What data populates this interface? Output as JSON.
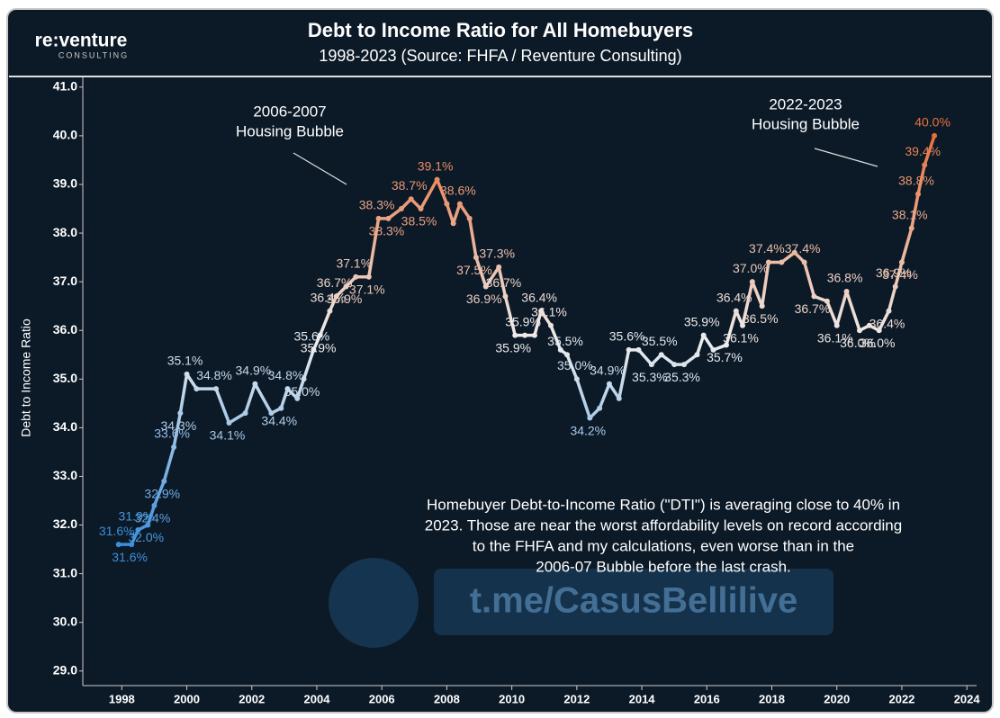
{
  "logo": {
    "name": "re:venture",
    "subtitle": "CONSULTING"
  },
  "watermark": "t.me/CasusBellilive",
  "chart_data": {
    "type": "line",
    "title": "Debt to Income Ratio for All Homebuyers",
    "subtitle": "1998-2023 (Source: FHFA / Reventure Consulting)",
    "y_label": "Debt to Income Ratio",
    "annotations": [
      {
        "lines": [
          "2006-2007",
          "Housing Bubble"
        ]
      },
      {
        "lines": [
          "2022-2023",
          "Housing Bubble"
        ]
      },
      {
        "lines": [
          "Homebuyer Debt-to-Income Ratio (\"DTI\") is averaging close to 40% in",
          "2023. Those are near the worst affordability levels on record according",
          "to the FHFA and my calculations, even worse than in the",
          "2006-07 Bubble before the last crash."
        ]
      }
    ],
    "colors": [
      "#3b8fdc",
      "#eeeeee",
      "#e8703a"
    ],
    "xlim": [
      1996.8,
      2024.3
    ],
    "xticks": [
      1998,
      2000,
      2002,
      2004,
      2006,
      2008,
      2010,
      2012,
      2014,
      2016,
      2018,
      2020,
      2022,
      2024
    ],
    "ylim": [
      28.7,
      41.2
    ],
    "yticks": [
      {
        "value": 29,
        "label": "29.0"
      },
      {
        "value": 30,
        "label": "30.0"
      },
      {
        "value": 31,
        "label": "31.0"
      },
      {
        "value": 32,
        "label": "32.0"
      },
      {
        "value": 33,
        "label": "33.0"
      },
      {
        "value": 34,
        "label": "34.0"
      },
      {
        "value": 35,
        "label": "35.0"
      },
      {
        "value": 36,
        "label": "36.0"
      },
      {
        "value": 37,
        "label": "37.0"
      },
      {
        "value": 38,
        "label": "38.0"
      },
      {
        "value": 39,
        "label": "39.0"
      },
      {
        "value": 40,
        "label": "40.0"
      },
      {
        "value": 41,
        "label": "41.0"
      }
    ],
    "x": [
      1997.9,
      1998.3,
      1998.5,
      1998.8,
      1999.0,
      1999.3,
      1999.6,
      1999.8,
      2000.0,
      2000.3,
      2000.9,
      2001.3,
      2001.8,
      2002.1,
      2002.6,
      2002.9,
      2003.1,
      2003.4,
      2003.6,
      2003.9,
      2004.1,
      2004.4,
      2004.6,
      2004.9,
      2005.2,
      2005.6,
      2005.9,
      2006.2,
      2006.6,
      2006.9,
      2007.2,
      2007.7,
      2008.0,
      2008.2,
      2008.4,
      2008.7,
      2008.9,
      2009.2,
      2009.6,
      2009.8,
      2010.1,
      2010.4,
      2010.7,
      2010.9,
      2011.2,
      2011.5,
      2011.7,
      2012.0,
      2012.4,
      2012.7,
      2013.0,
      2013.3,
      2013.6,
      2013.9,
      2014.3,
      2014.6,
      2015.0,
      2015.3,
      2015.7,
      2015.9,
      2016.2,
      2016.6,
      2016.9,
      2017.1,
      2017.4,
      2017.7,
      2017.9,
      2018.3,
      2018.7,
      2019.0,
      2019.3,
      2019.7,
      2020.0,
      2020.3,
      2020.7,
      2021.0,
      2021.3,
      2021.6,
      2021.8,
      2022.0,
      2022.3,
      2022.5,
      2022.7,
      2023.0
    ],
    "values": [
      31.6,
      31.6,
      31.9,
      32.0,
      32.4,
      32.9,
      33.6,
      34.3,
      35.1,
      34.8,
      34.8,
      34.1,
      34.3,
      34.9,
      34.3,
      34.4,
      34.8,
      34.6,
      35.0,
      35.6,
      35.9,
      36.4,
      36.7,
      36.9,
      37.1,
      37.1,
      38.3,
      38.3,
      38.5,
      38.7,
      38.5,
      39.1,
      38.6,
      38.2,
      38.6,
      38.3,
      37.5,
      36.9,
      37.3,
      36.7,
      35.9,
      35.9,
      35.9,
      36.4,
      36.1,
      35.6,
      35.5,
      35.0,
      34.2,
      34.4,
      34.9,
      34.6,
      35.6,
      35.6,
      35.3,
      35.5,
      35.3,
      35.3,
      35.5,
      35.9,
      35.6,
      35.7,
      36.4,
      36.1,
      37.0,
      36.5,
      37.4,
      37.4,
      37.6,
      37.4,
      36.7,
      36.6,
      36.1,
      36.8,
      36.0,
      36.1,
      36.0,
      36.4,
      36.9,
      37.4,
      38.1,
      38.8,
      39.4,
      40.0
    ],
    "value_labels": [
      "31.6%",
      "31.6%",
      "31.9%",
      "32.0%",
      "32.4%",
      "32.9%",
      "33.6%",
      "34.3%",
      "35.1%",
      null,
      "34.8%",
      "34.1%",
      null,
      "34.9%",
      null,
      "34.4%",
      "34.8%",
      null,
      "35.0%",
      "35.6%",
      "35.9%",
      "36.4%",
      "36.7%",
      "36.9%",
      "37.1%",
      "37.1%",
      "38.3%",
      "38.3%",
      null,
      "38.7%",
      "38.5%",
      "39.1%",
      null,
      null,
      "38.6%",
      null,
      "37.5%",
      "36.9%",
      "37.3%",
      "36.7%",
      "35.9%",
      "35.9%",
      null,
      "36.4%",
      "36.1%",
      null,
      "35.5%",
      "35.0%",
      "34.2%",
      null,
      "34.9%",
      null,
      "35.6%",
      null,
      "35.3%",
      "35.5%",
      null,
      "35.3%",
      null,
      "35.9%",
      null,
      "35.7%",
      "36.4%",
      "36.1%",
      "37.0%",
      "36.5%",
      "37.4%",
      null,
      null,
      "37.4%",
      "36.7%",
      null,
      "36.1%",
      "36.8%",
      "36.0%",
      null,
      "36.0%",
      "36.4%",
      "36.9%",
      "37.4%",
      "38.1%",
      "38.8%",
      "39.4%",
      "40.0%"
    ]
  }
}
